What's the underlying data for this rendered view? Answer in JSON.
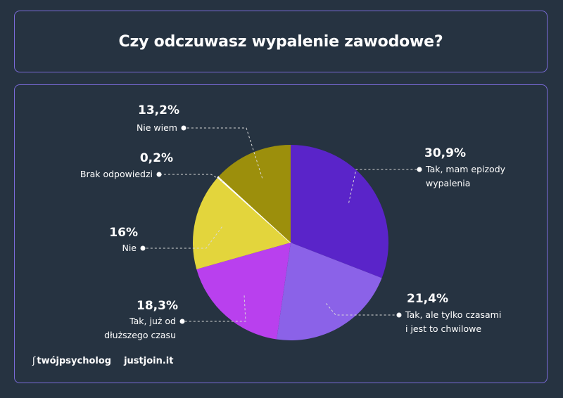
{
  "title": "Czy odczuwasz wypalenie zawodowe?",
  "chart_data": {
    "type": "pie",
    "slices": [
      {
        "label": "Tak, mam epizody wypalenia",
        "label_lines": [
          "Tak, mam epizody",
          "wypalenia"
        ],
        "value": 30.9,
        "value_label": "30,9%",
        "color": "#5a24c9"
      },
      {
        "label": "Tak, ale tylko czasami i jest to chwilowe",
        "label_lines": [
          "Tak, ale tylko czasami",
          "i jest to chwilowe"
        ],
        "value": 21.4,
        "value_label": "21,4%",
        "color": "#8b62e8"
      },
      {
        "label": "Tak, już od dłuższego czasu",
        "label_lines": [
          "Tak, już od",
          "dłuższego czasu"
        ],
        "value": 18.3,
        "value_label": "18,3%",
        "color": "#b940ee"
      },
      {
        "label": "Nie",
        "label_lines": [
          "Nie"
        ],
        "value": 16,
        "value_label": "16%",
        "color": "#e3d53c"
      },
      {
        "label": "Brak odpowiedzi",
        "label_lines": [
          "Brak odpowiedzi"
        ],
        "value": 0.2,
        "value_label": "0,2%",
        "color": "#ffffff"
      },
      {
        "label": "Nie wiem",
        "label_lines": [
          "Nie wiem"
        ],
        "value": 13.2,
        "value_label": "13,2%",
        "color": "#9c8f0c"
      }
    ]
  },
  "logos": {
    "left": "twójpsycholog",
    "right": "justjoin.it"
  }
}
